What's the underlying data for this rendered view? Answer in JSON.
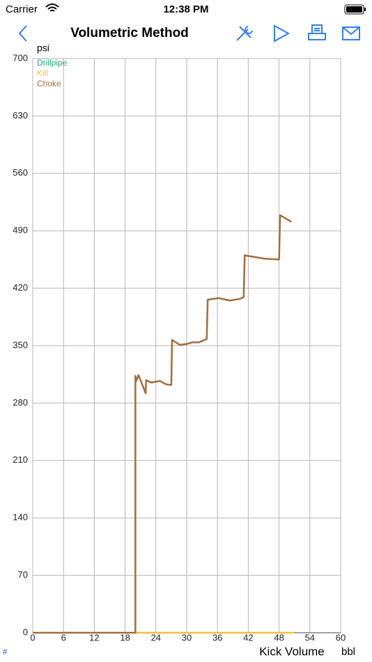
{
  "status_bar": {
    "carrier": "Carrier",
    "time": "12:38 PM"
  },
  "nav_bar": {
    "title": "Volumetric Method"
  },
  "footer": {
    "hash": "#"
  },
  "chart_data": {
    "type": "line",
    "y_unit": "psi",
    "xlabel": "Kick Volume",
    "x_unit": "bbl",
    "xlim": [
      0,
      60
    ],
    "xticks": [
      0,
      6,
      12,
      18,
      24,
      30,
      36,
      42,
      48,
      54,
      60
    ],
    "ylim": [
      0,
      700
    ],
    "yticks": [
      0,
      70,
      140,
      210,
      280,
      350,
      420,
      490,
      560,
      630,
      700
    ],
    "grid": true,
    "legend": "top-left",
    "series": [
      {
        "name": "Drillpipe",
        "color": "#1ea67a",
        "x": [],
        "values": []
      },
      {
        "name": "Kill",
        "color": "#f0c040",
        "x": [
          20,
          51
        ],
        "values": [
          0,
          0
        ]
      },
      {
        "name": "Choke",
        "color": "#a06d3e",
        "x": [
          0,
          20,
          20,
          20.1,
          20.6,
          22,
          22.1,
          23.1,
          24.8,
          25.9,
          27,
          27.15,
          28.6,
          30,
          31.1,
          32.4,
          33.9,
          34.1,
          36.2,
          38.4,
          40.4,
          41.1,
          41.3,
          43.3,
          45.2,
          48,
          48.2,
          50.4
        ],
        "values": [
          0,
          0,
          313,
          306,
          314,
          292,
          308,
          305,
          307,
          303,
          302,
          357,
          351,
          352,
          354,
          354,
          358,
          406,
          408,
          405,
          407,
          409,
          460,
          458,
          456,
          455,
          509,
          501
        ]
      }
    ]
  }
}
